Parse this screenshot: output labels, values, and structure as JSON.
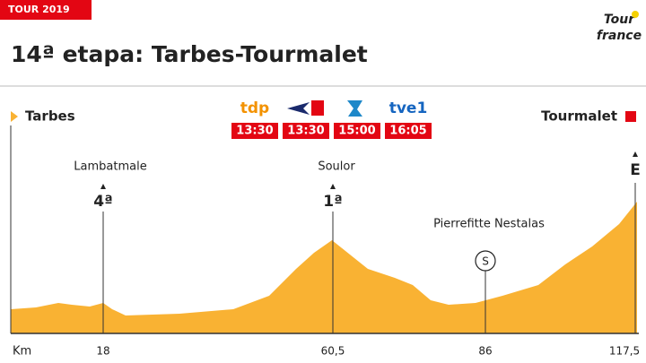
{
  "header": {
    "tag": "TOUR 2019",
    "title": "14ª etapa: Tarbes-Tourmalet",
    "logo": [
      "Tour",
      "france"
    ]
  },
  "start": "Tarbes",
  "finish": "Tourmalet",
  "broadcasters": [
    {
      "logo": "tdp",
      "time": "13:30"
    },
    {
      "time": "13:30"
    },
    {
      "time": "15:00"
    },
    {
      "logo": "tve1",
      "time": "16:05"
    }
  ],
  "climbs": [
    {
      "name": "Lambatmale",
      "category": "4ª"
    },
    {
      "name": "Soulor",
      "category": "1ª"
    }
  ],
  "finish_marker": "E",
  "sprint": {
    "name": "Pierrefitte Nestalas",
    "symbol": "S"
  },
  "axis": {
    "unit": "Km",
    "ticks": [
      "18",
      "60,5",
      "86",
      "117,5"
    ]
  }
}
